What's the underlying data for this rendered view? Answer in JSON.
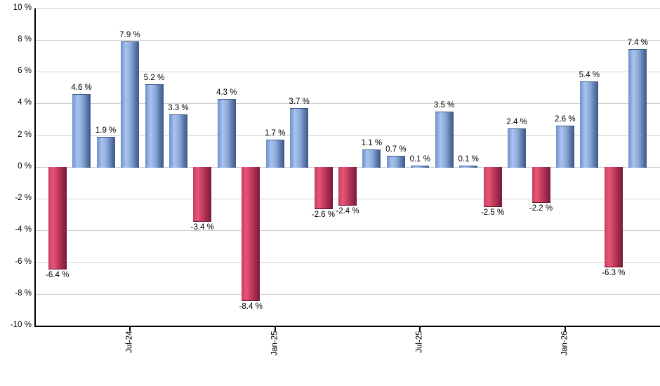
{
  "chart_data": {
    "type": "bar",
    "title": "",
    "xlabel": "",
    "ylabel": "",
    "ylim": [
      -10,
      10
    ],
    "grid": true,
    "legend": "none",
    "bar_orientation": "vertical",
    "values": [
      -6.4,
      4.6,
      1.9,
      7.9,
      5.2,
      3.3,
      -3.4,
      4.3,
      -8.4,
      1.7,
      3.7,
      -2.6,
      -2.4,
      1.1,
      0.7,
      0.1,
      3.5,
      0.1,
      -2.5,
      2.4,
      -2.2,
      2.6,
      5.4,
      -6.3,
      7.4
    ],
    "bar_labels": [
      "-6.4 %",
      "4.6 %",
      "1.9 %",
      "7.9 %",
      "5.2 %",
      "3.3 %",
      "-3.4 %",
      "4.3 %",
      "-8.4 %",
      "1.7 %",
      "3.7 %",
      "-2.6 %",
      "-2.4 %",
      "1.1 %",
      "0.7 %",
      "0.1 %",
      "3.5 %",
      "0.1 %",
      "-2.5 %",
      "2.4 %",
      "-2.2 %",
      "2.6 %",
      "5.4 %",
      "-6.3 %",
      "7.4 %"
    ],
    "y_tick_values": [
      10,
      8,
      6,
      4,
      2,
      0,
      -2,
      -4,
      -6,
      -8,
      -10
    ],
    "y_tick_labels": [
      "10 %",
      "8 %",
      "6 %",
      "4 %",
      "2 %",
      "0 %",
      "-2 %",
      "-4 %",
      "-6 %",
      "-8 %",
      "-10 %"
    ],
    "x_ticks": [
      {
        "index": 3,
        "label": "Jul-24"
      },
      {
        "index": 9,
        "label": "Jan-25"
      },
      {
        "index": 15,
        "label": "Jul-25"
      },
      {
        "index": 21,
        "label": "Jan-26"
      }
    ],
    "colors": {
      "positive_bar_edge": "#3e5584",
      "positive_bar_light": "#a9c4f0",
      "negative_bar_edge": "#701a35",
      "negative_bar_light": "#e85578",
      "gridline": "#cfcfcf",
      "axis": "#000000",
      "label_text": "#000000"
    }
  }
}
